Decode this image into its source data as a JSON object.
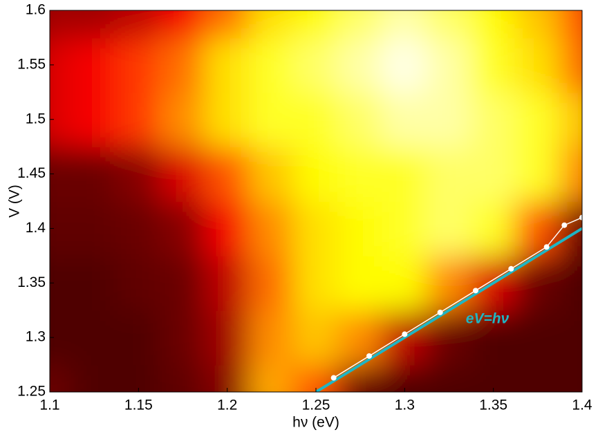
{
  "chart_data": {
    "type": "heatmap",
    "x_label": "hν (eV)",
    "y_label": "V (V)",
    "xlim": [
      1.1,
      1.4
    ],
    "ylim": [
      1.25,
      1.6
    ],
    "xticks": [
      1.1,
      1.15,
      1.2,
      1.25,
      1.3,
      1.35,
      1.4
    ],
    "yticks": [
      1.25,
      1.3,
      1.35,
      1.4,
      1.45,
      1.5,
      1.55,
      1.6
    ],
    "colormap": "hot",
    "x": [
      1.1,
      1.125,
      1.15,
      1.175,
      1.2,
      1.225,
      1.25,
      1.275,
      1.3,
      1.325,
      1.35,
      1.375,
      1.4
    ],
    "y": [
      1.25,
      1.3,
      1.35,
      1.4,
      1.45,
      1.5,
      1.55,
      1.6
    ],
    "z": [
      [
        0.1,
        0.05,
        0.05,
        0.08,
        0.15,
        0.65,
        0.5,
        0.1,
        0.05,
        0.05,
        0.05,
        0.05,
        0.05
      ],
      [
        0.05,
        0.05,
        0.05,
        0.1,
        0.2,
        0.6,
        0.7,
        0.6,
        0.25,
        0.1,
        0.05,
        0.05,
        0.05
      ],
      [
        0.05,
        0.05,
        0.08,
        0.1,
        0.25,
        0.55,
        0.75,
        0.8,
        0.8,
        0.6,
        0.3,
        0.1,
        0.05
      ],
      [
        0.08,
        0.08,
        0.1,
        0.15,
        0.35,
        0.6,
        0.75,
        0.8,
        0.85,
        0.9,
        0.85,
        0.5,
        0.1
      ],
      [
        0.1,
        0.1,
        0.15,
        0.3,
        0.5,
        0.7,
        0.8,
        0.85,
        0.85,
        0.9,
        0.9,
        0.85,
        0.6
      ],
      [
        0.3,
        0.35,
        0.45,
        0.6,
        0.75,
        0.85,
        0.85,
        0.9,
        0.95,
        0.95,
        0.9,
        0.85,
        0.7
      ],
      [
        0.3,
        0.35,
        0.45,
        0.55,
        0.75,
        0.85,
        0.9,
        0.95,
        1.0,
        0.95,
        0.85,
        0.75,
        0.55
      ],
      [
        0.2,
        0.2,
        0.25,
        0.35,
        0.55,
        0.75,
        0.8,
        0.9,
        0.95,
        0.9,
        0.8,
        0.7,
        0.5
      ]
    ],
    "lines": [
      {
        "name": "eV=hν",
        "color": "#1fb5c4",
        "x": [
          1.25,
          1.4
        ],
        "values": [
          1.25,
          1.4
        ]
      },
      {
        "color": "#ffffff",
        "x": [
          1.26,
          1.28,
          1.3,
          1.32,
          1.34,
          1.36,
          1.38,
          1.39,
          1.4
        ],
        "values": [
          1.263,
          1.283,
          1.303,
          1.323,
          1.343,
          1.363,
          1.383,
          1.403,
          1.41
        ],
        "markers": true
      }
    ]
  }
}
